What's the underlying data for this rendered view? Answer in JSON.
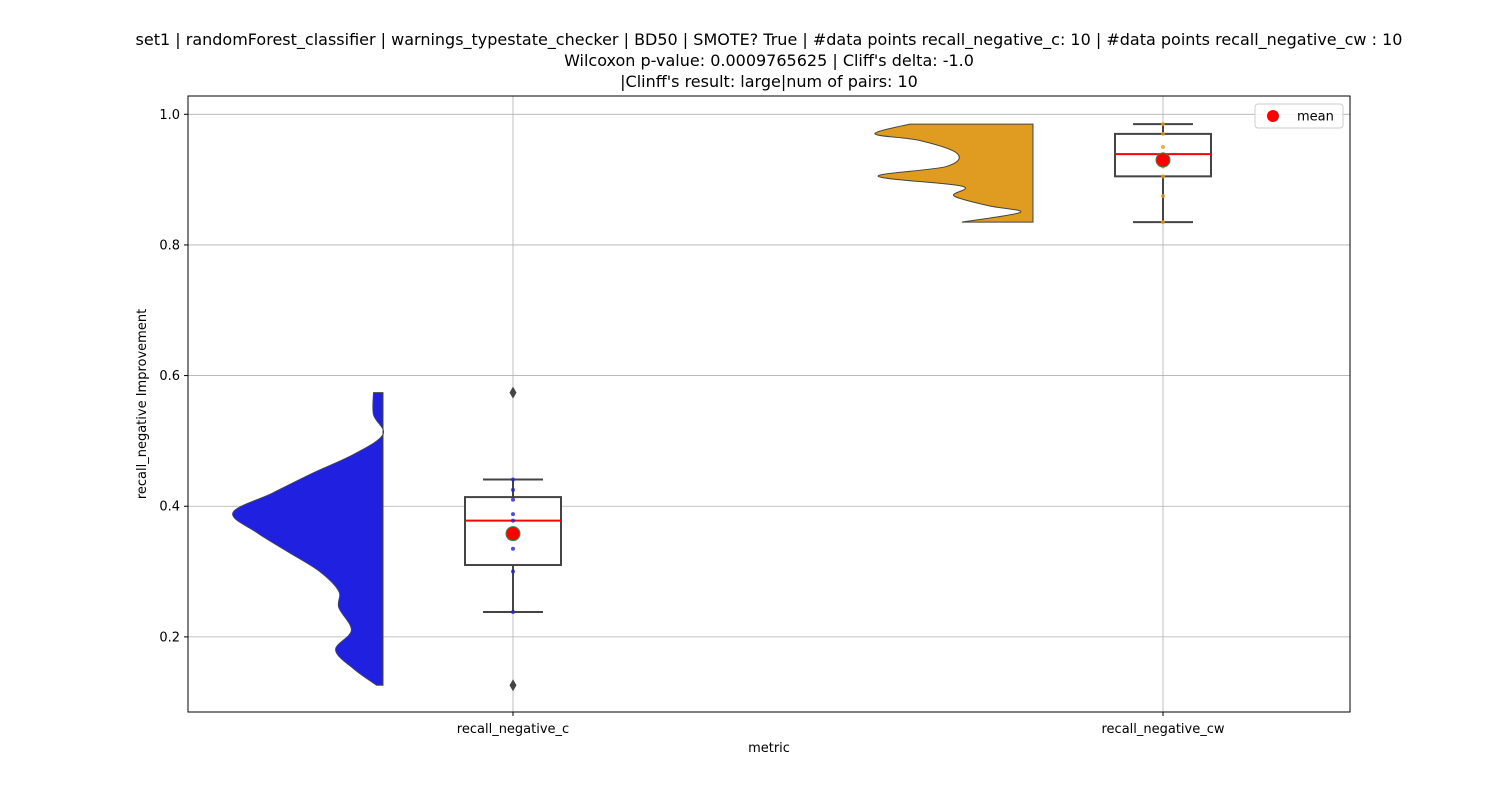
{
  "chart_data": {
    "type": "box+violin",
    "title_lines": [
      "set1 | randomForest_classifier | warnings_typestate_checker | BD50 | SMOTE? True | #data points recall_negative_c: 10 | #data points recall_negative_cw : 10",
      "Wilcoxon p-value: 0.0009765625 | Cliff's delta: -1.0",
      "|Clinff's result: large|num of pairs: 10"
    ],
    "xlabel": "metric",
    "ylabel": "recall_negative Improvement",
    "ylim": [
      0.085,
      1.028
    ],
    "y_ticks": [
      0.2,
      0.4,
      0.6,
      0.8,
      1.0
    ],
    "y_tick_labels": [
      "0.2",
      "0.4",
      "0.6",
      "0.8",
      "1.0"
    ],
    "grid": true,
    "legend": {
      "position": "top-right",
      "entries": [
        {
          "label": "mean",
          "color": "#ff0000"
        }
      ]
    },
    "mean_marker_color": "#ff0000",
    "median_color": "#ff0000",
    "categories": [
      "recall_negative_c",
      "recall_negative_cw"
    ],
    "series": [
      {
        "name": "recall_negative_c",
        "color": "#2020e0",
        "box": {
          "q1": 0.31,
          "median": 0.378,
          "q3": 0.414,
          "whisker_low": 0.238,
          "whisker_high": 0.441
        },
        "mean": 0.358,
        "outliers": [
          0.574,
          0.126
        ],
        "points": [
          0.441,
          0.425,
          0.388,
          0.378,
          0.335,
          0.3,
          0.238,
          0.41
        ],
        "violin": [
          [
            0.126,
            0.04
          ],
          [
            0.15,
            0.18
          ],
          [
            0.18,
            0.3
          ],
          [
            0.21,
            0.2
          ],
          [
            0.245,
            0.28
          ],
          [
            0.27,
            0.28
          ],
          [
            0.3,
            0.4
          ],
          [
            0.33,
            0.6
          ],
          [
            0.36,
            0.8
          ],
          [
            0.39,
            0.95
          ],
          [
            0.42,
            0.7
          ],
          [
            0.45,
            0.45
          ],
          [
            0.48,
            0.18
          ],
          [
            0.51,
            0.0
          ],
          [
            0.54,
            0.06
          ],
          [
            0.574,
            0.06
          ]
        ]
      },
      {
        "name": "recall_negative_cw",
        "color": "#e09c20",
        "box": {
          "q1": 0.905,
          "median": 0.939,
          "q3": 0.97,
          "whisker_low": 0.835,
          "whisker_high": 0.985
        },
        "mean": 0.93,
        "outliers": [],
        "points": [
          0.985,
          0.97,
          0.95,
          0.939,
          0.92,
          0.905,
          0.875,
          0.835
        ],
        "violin": [
          [
            0.835,
            0.45
          ],
          [
            0.85,
            0.08
          ],
          [
            0.86,
            0.28
          ],
          [
            0.875,
            0.5
          ],
          [
            0.89,
            0.45
          ],
          [
            0.905,
            0.98
          ],
          [
            0.92,
            0.55
          ],
          [
            0.94,
            0.48
          ],
          [
            0.96,
            0.72
          ],
          [
            0.97,
            1.0
          ],
          [
            0.985,
            0.78
          ]
        ]
      }
    ]
  }
}
